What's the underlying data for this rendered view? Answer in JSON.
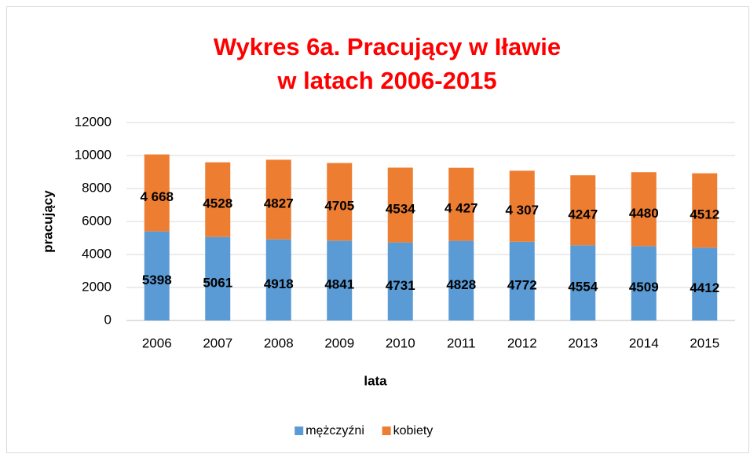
{
  "chart_data": {
    "type": "stacked_bar",
    "title": [
      "Wykres 6a. Pracujący w Iławie",
      "w latach 2006-2015"
    ],
    "x_label": "lata",
    "y_label": "pracujący",
    "categories": [
      "2006",
      "2007",
      "2008",
      "2009",
      "2010",
      "2011",
      "2012",
      "2013",
      "2014",
      "2015"
    ],
    "series": [
      {
        "name": "mężczyźni",
        "color": "#5b9bd5",
        "values": [
          5398,
          5061,
          4918,
          4841,
          4731,
          4828,
          4772,
          4554,
          4509,
          4412
        ]
      },
      {
        "name": "kobiety",
        "color": "#ed7d31",
        "values": [
          4668,
          4528,
          4827,
          4705,
          4534,
          4427,
          4307,
          4247,
          4480,
          4512
        ],
        "value_labels": [
          "4 668",
          "4528",
          "4827",
          "4705",
          "4534",
          "4 427",
          "4 307",
          "4247",
          "4480",
          "4512"
        ]
      }
    ],
    "ylim": [
      0,
      12000
    ],
    "yticks": [
      0,
      2000,
      4000,
      6000,
      8000,
      10000,
      12000
    ],
    "grid": true,
    "legend": "bottom"
  }
}
